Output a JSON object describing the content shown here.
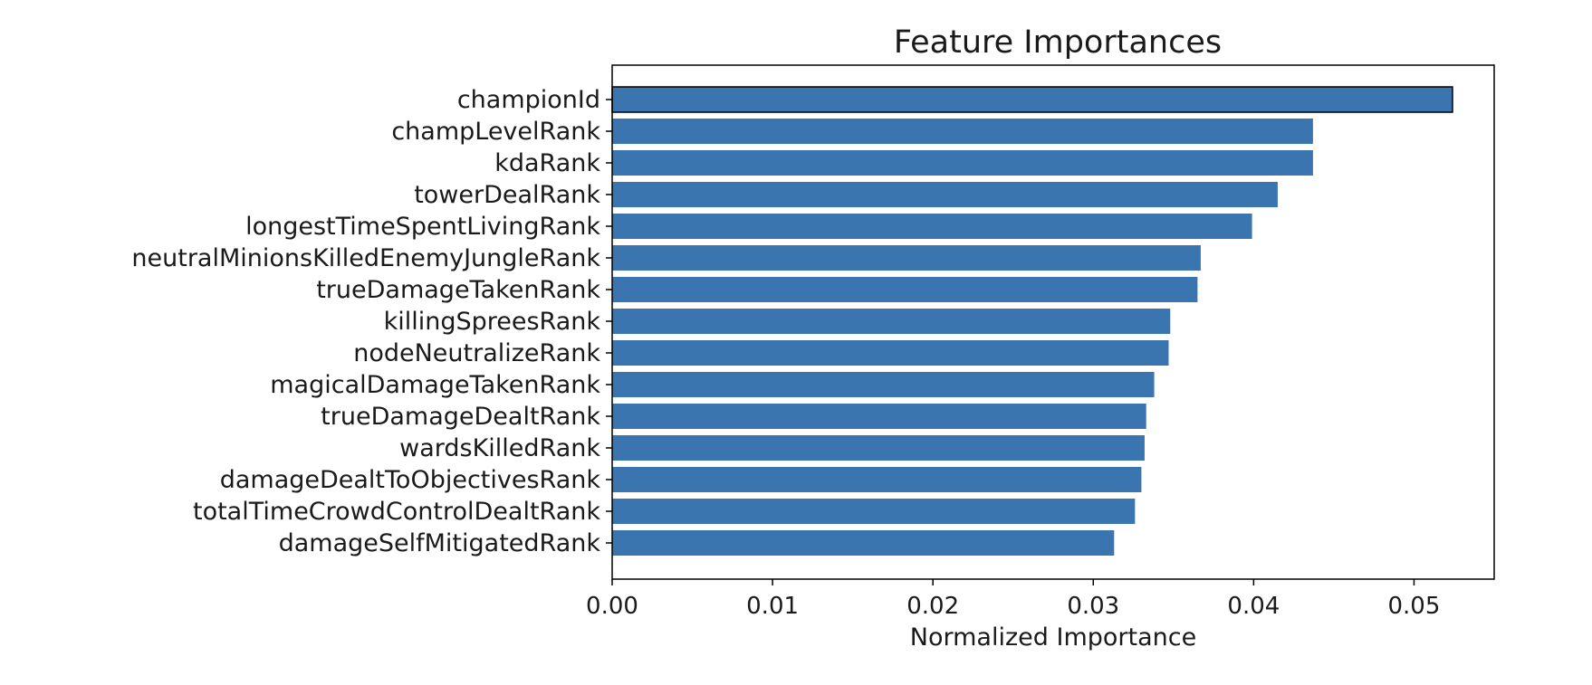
{
  "chart_data": {
    "type": "bar",
    "orientation": "horizontal",
    "title": "Feature Importances",
    "xlabel": "Normalized Importance",
    "ylabel": "",
    "xlim": [
      0.0,
      0.055
    ],
    "xticks": [
      "0.00",
      "0.01",
      "0.02",
      "0.03",
      "0.04",
      "0.05"
    ],
    "xtick_values": [
      0.0,
      0.01,
      0.02,
      0.03,
      0.04,
      0.05
    ],
    "grid": false,
    "legend": "none",
    "bar_color": "#3a75b0",
    "highlight_edge_color": "#000000",
    "categories": [
      "championId",
      "champLevelRank",
      "kdaRank",
      "towerDealRank",
      "longestTimeSpentLivingRank",
      "neutralMinionsKilledEnemyJungleRank",
      "trueDamageTakenRank",
      "killingSpreesRank",
      "nodeNeutralizeRank",
      "magicalDamageTakenRank",
      "trueDamageDealtRank",
      "wardsKilledRank",
      "damageDealtToObjectivesRank",
      "totalTimeCrowdControlDealtRank",
      "damageSelfMitigatedRank"
    ],
    "values": [
      0.0524,
      0.0437,
      0.0437,
      0.0415,
      0.0399,
      0.0367,
      0.0365,
      0.0348,
      0.0347,
      0.0338,
      0.0333,
      0.0332,
      0.033,
      0.0326,
      0.0313
    ]
  }
}
